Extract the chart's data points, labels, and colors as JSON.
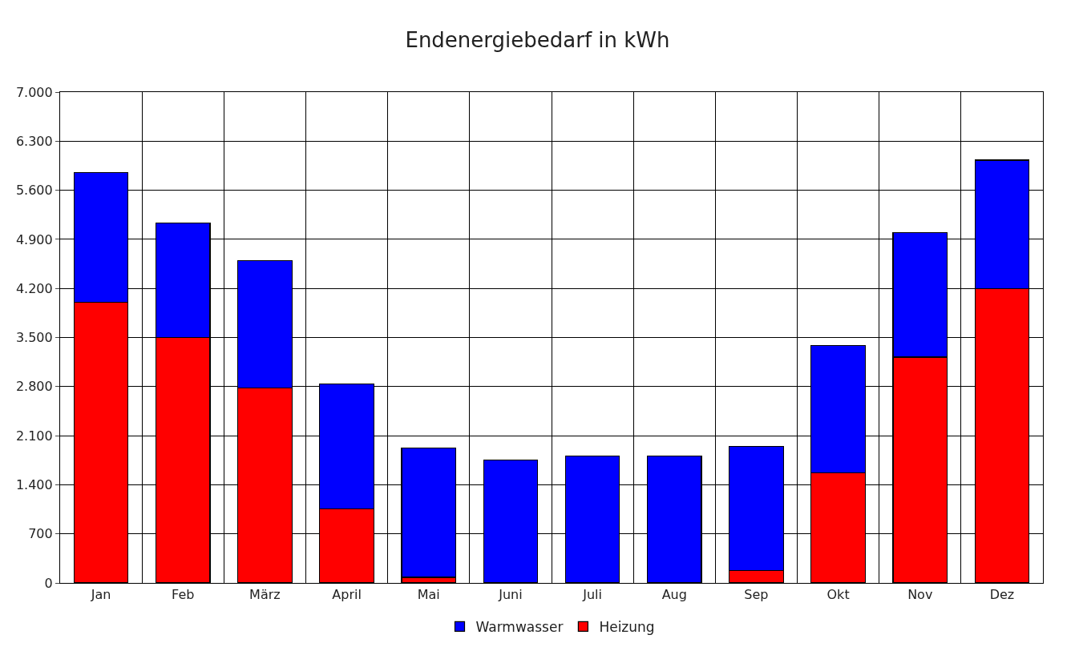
{
  "chart_data": {
    "type": "bar",
    "title": "Endenergiebedarf in kWh",
    "stacked": true,
    "categories": [
      "Jan",
      "Feb",
      "März",
      "April",
      "Mai",
      "Juni",
      "Juli",
      "Aug",
      "Sep",
      "Okt",
      "Nov",
      "Dez"
    ],
    "series": [
      {
        "name": "Heizung",
        "color": "#ff0000",
        "values": [
          4000,
          3500,
          2780,
          1060,
          80,
          0,
          0,
          0,
          180,
          1570,
          3220,
          4200
        ]
      },
      {
        "name": "Warmwasser",
        "color": "#0000ff",
        "values": [
          1850,
          1630,
          1820,
          1780,
          1840,
          1750,
          1810,
          1810,
          1770,
          1820,
          1780,
          1830
        ]
      }
    ],
    "ylim": [
      0,
      7000
    ],
    "yticks": [
      0,
      700,
      {
        "value": 1400,
        "label": "1.400"
      },
      {
        "value": 2100,
        "label": "2.100"
      },
      {
        "value": 2800,
        "label": "2.800"
      },
      {
        "value": 3500,
        "label": "3.500"
      },
      {
        "value": 4200,
        "label": "4.200"
      },
      {
        "value": 4900,
        "label": "4.900"
      },
      {
        "value": 5600,
        "label": "5.600"
      },
      {
        "value": 6300,
        "label": "6.300"
      },
      {
        "value": 7000,
        "label": "7.000"
      }
    ],
    "grid": true,
    "legend": "bottom"
  }
}
